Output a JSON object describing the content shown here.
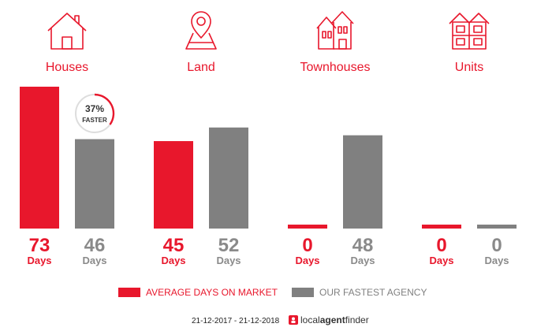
{
  "colors": {
    "market": "#e8172c",
    "agency": "#808080",
    "grey_text": "#8a8a8a"
  },
  "chart_data": {
    "type": "bar",
    "categories": [
      "Houses",
      "Land",
      "Townhouses",
      "Units"
    ],
    "series": [
      {
        "name": "AVERAGE DAYS ON MARKET",
        "values": [
          73,
          45,
          0,
          0
        ]
      },
      {
        "name": "OUR FASTEST AGENCY",
        "values": [
          46,
          52,
          48,
          0
        ]
      }
    ],
    "unit_label": "Days",
    "ylim": [
      0,
      73
    ],
    "icons": [
      "house-icon",
      "land-pin-icon",
      "townhouses-icon",
      "units-icon"
    ]
  },
  "badge": {
    "percent": "37%",
    "word": "FASTER"
  },
  "footer": {
    "date_range": "21-12-2017 - 21-12-2018",
    "brand_prefix": "local",
    "brand_mid": "agent",
    "brand_suffix": "finder"
  }
}
